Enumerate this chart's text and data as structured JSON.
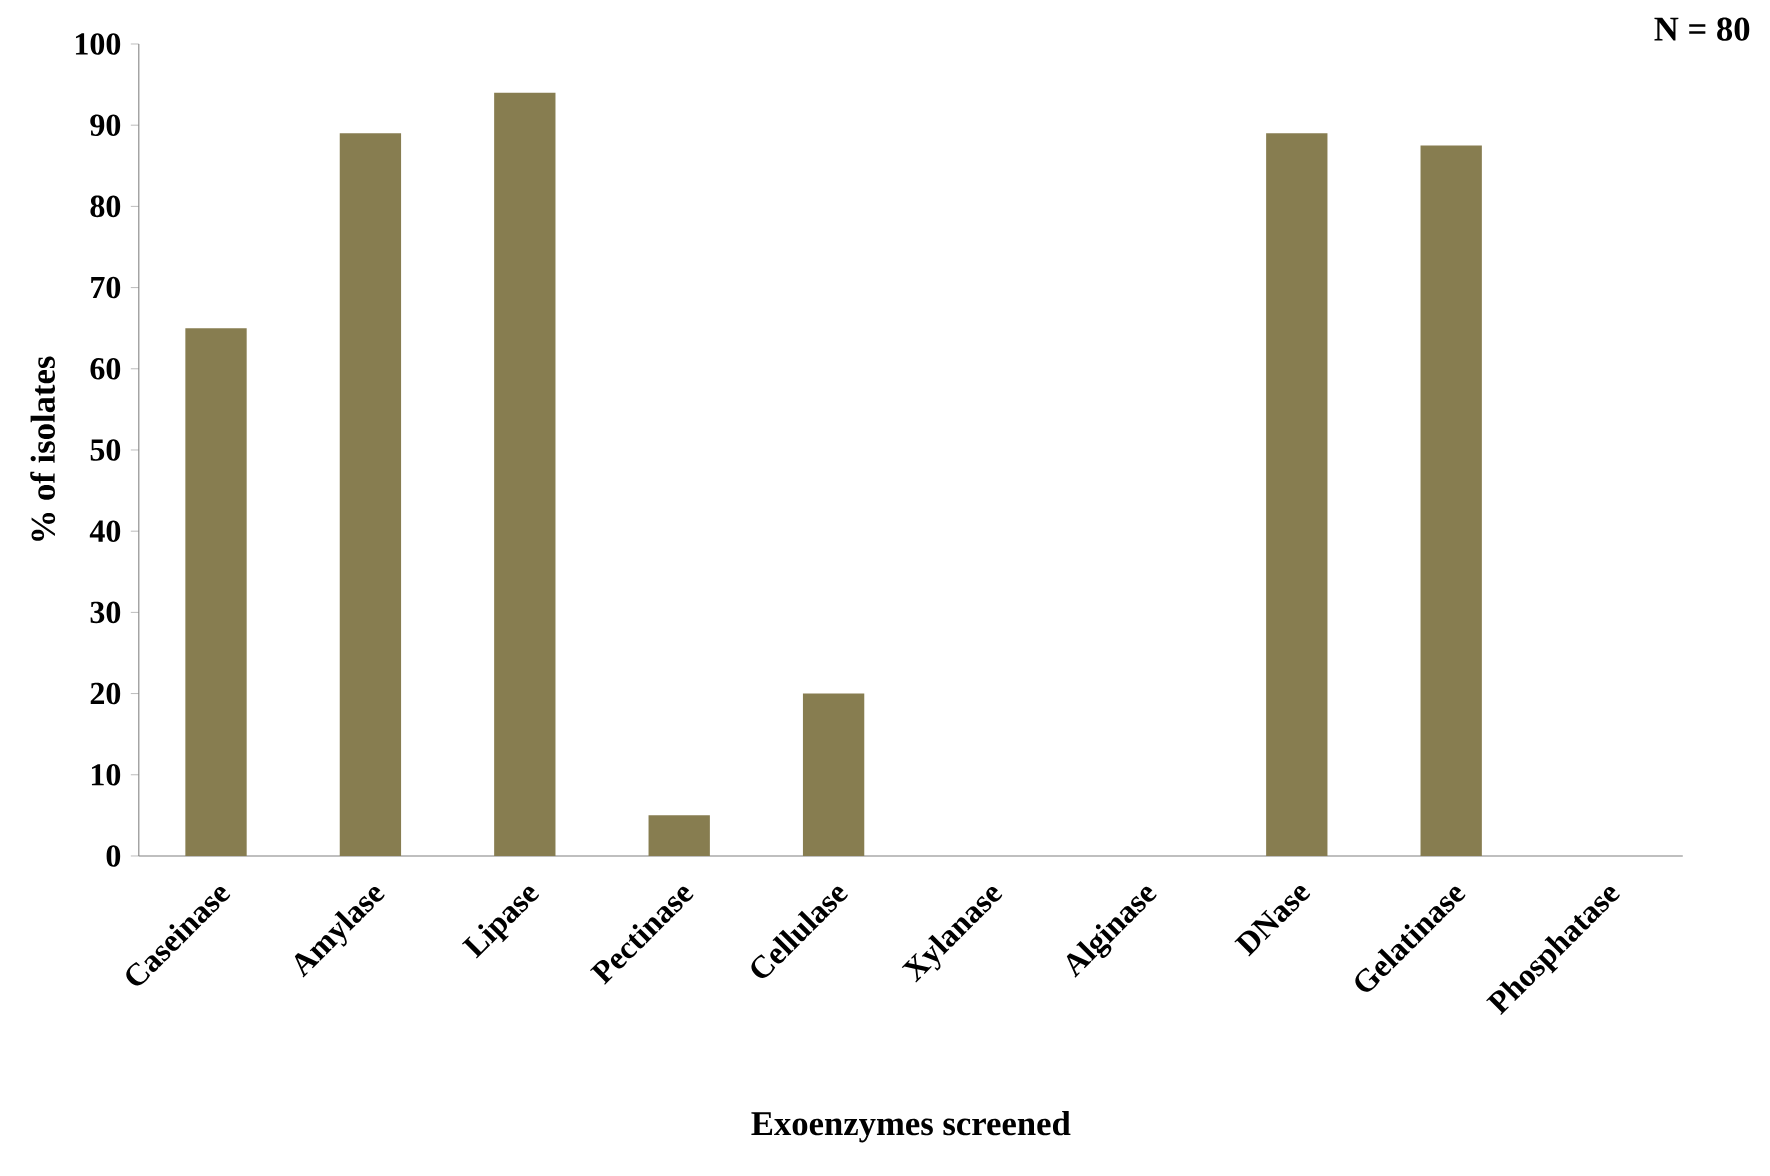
{
  "chart_data": {
    "type": "bar",
    "xlabel": "Exoenzymes screened",
    "ylabel": "% of isolates",
    "categories": [
      "Caseinase",
      "Amylase",
      "Lipase",
      "Pectinase",
      "Cellulase",
      "Xylanase",
      "Alginase",
      "DNase",
      "Gelatinase",
      "Phosphatase"
    ],
    "values": [
      65,
      89,
      94,
      5,
      20,
      0,
      0,
      89,
      87.5,
      0
    ],
    "color": "#877d50",
    "ylim": [
      0,
      100
    ],
    "yticks": [
      0,
      10,
      20,
      30,
      40,
      50,
      60,
      70,
      80,
      90,
      100
    ],
    "grid": false,
    "annotations": [
      "N = 80"
    ]
  }
}
